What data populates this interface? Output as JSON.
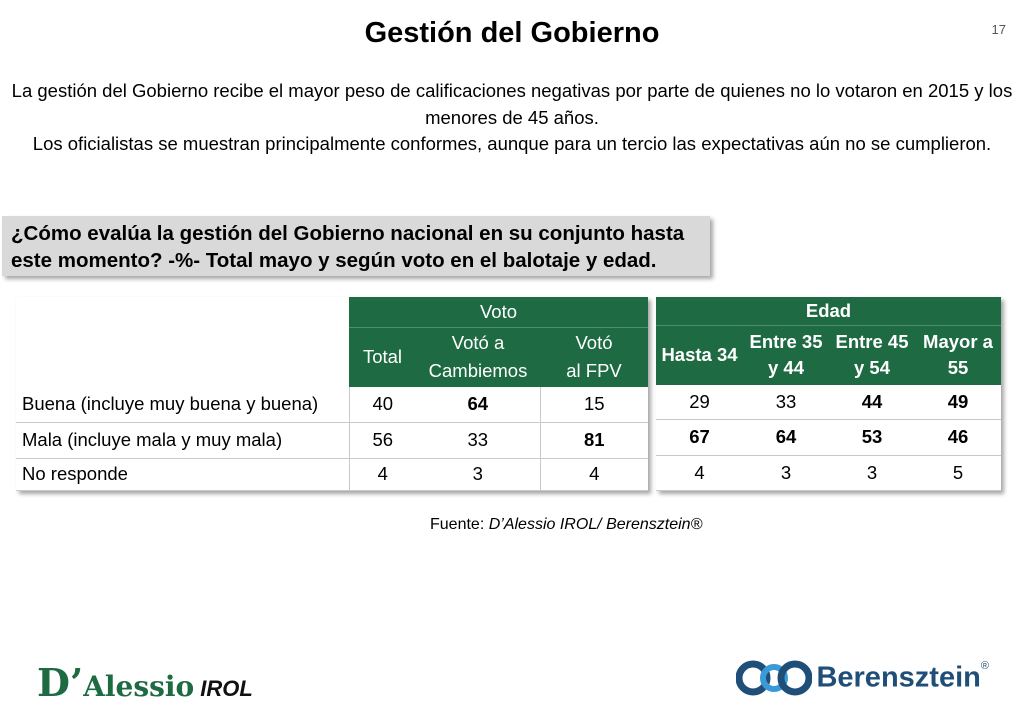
{
  "page": {
    "title": "Gestión del Gobierno",
    "page_number": "17",
    "intro_line1": "La gestión del Gobierno recibe el mayor peso de calificaciones negativas  por parte de quienes no lo votaron en 2015 y los menores de 45 años.",
    "intro_line2": "Los oficialistas se muestran principalmente conformes, aunque para un tercio las expectativas aún no se cumplieron."
  },
  "question": "¿Cómo evalúa la gestión del Gobierno nacional en su conjunto hasta este momento? -%- Total mayo y según voto en el balotaje y edad.",
  "voto_table": {
    "group_header": "Voto",
    "columns": [
      {
        "line1": "Total",
        "line2": ""
      },
      {
        "line1": "Votó a",
        "line2": "Cambiemos"
      },
      {
        "line1": "Votó",
        "line2": "al FPV"
      }
    ],
    "rows": [
      {
        "label": "Buena (incluye muy buena y buena)",
        "values": [
          "40",
          "64",
          "15"
        ],
        "bold": [
          false,
          true,
          false
        ]
      },
      {
        "label": "Mala (incluye mala y muy mala)",
        "values": [
          "56",
          "33",
          "81"
        ],
        "bold": [
          false,
          false,
          true
        ]
      },
      {
        "label": "No responde",
        "values": [
          "4",
          "3",
          "4"
        ],
        "bold": [
          false,
          false,
          false
        ]
      }
    ]
  },
  "edad_table": {
    "group_header": "Edad",
    "columns": [
      {
        "line1": "Hasta 34",
        "line2": ""
      },
      {
        "line1": "Entre 35",
        "line2": "y 44"
      },
      {
        "line1": "Entre 45",
        "line2": "y 54"
      },
      {
        "line1": "Mayor a",
        "line2": "55"
      }
    ],
    "rows": [
      {
        "values": [
          "29",
          "33",
          "44",
          "49"
        ],
        "bold": [
          false,
          false,
          true,
          true
        ]
      },
      {
        "values": [
          "67",
          "64",
          "53",
          "46"
        ],
        "bold": [
          true,
          true,
          true,
          true
        ]
      },
      {
        "values": [
          "4",
          "3",
          "3",
          "5"
        ],
        "bold": [
          false,
          false,
          false,
          false
        ]
      }
    ]
  },
  "source": {
    "prefix": "Fuente: ",
    "text": "D’Alessio IROL/ Berensztein®"
  },
  "logos": {
    "left_d": "D’",
    "left_name": "Alessio",
    "left_suffix": "IROL",
    "right_name": "Berensztein",
    "right_reg": "®"
  },
  "colors": {
    "header_green": "#1e6b43",
    "question_bg": "#d9d9d9",
    "brand_blue": "#1f4e79"
  }
}
